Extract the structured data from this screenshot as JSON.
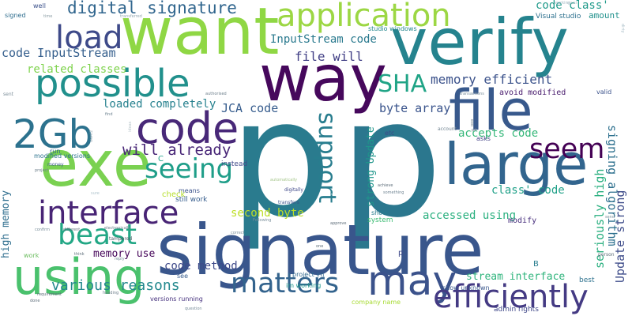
{
  "words": [
    {
      "text": "p",
      "color": "#2a7b8e"
    },
    {
      "text": "p",
      "color": "#2b778e"
    },
    {
      "text": "signature",
      "color": "#39568c"
    },
    {
      "text": "want",
      "color": "#8fd744"
    },
    {
      "text": "way",
      "color": "#46085c"
    },
    {
      "text": "verify",
      "color": "#25838e"
    },
    {
      "text": "file",
      "color": "#38598c"
    },
    {
      "text": "large",
      "color": "#32658e"
    },
    {
      "text": "possible",
      "color": "#21908c"
    },
    {
      "text": "code",
      "color": "#482878"
    },
    {
      "text": "exe",
      "color": "#7ad151"
    },
    {
      "text": "2Gb",
      "color": "#2c728e"
    },
    {
      "text": "application",
      "color": "#9cd744"
    },
    {
      "text": "using",
      "color": "#4ac16d"
    },
    {
      "text": "may",
      "color": "#3b528b"
    },
    {
      "text": "interface",
      "color": "#482475"
    },
    {
      "text": "efficiently",
      "color": "#443a83"
    },
    {
      "text": "matters",
      "color": "#33638d"
    },
    {
      "text": "seeing",
      "color": "#1f9e89"
    },
    {
      "text": "seem",
      "color": "#440154"
    },
    {
      "text": "load",
      "color": "#3e4a89"
    },
    {
      "text": "beast",
      "color": "#22a785"
    },
    {
      "text": "SHA",
      "color": "#20a486"
    },
    {
      "text": "support",
      "color": "#287d8e"
    },
    {
      "text": "digital signature",
      "color": "#31668e"
    },
    {
      "text": "code class'",
      "color": "#1f9a8a"
    },
    {
      "text": "will already",
      "color": "#482677"
    },
    {
      "text": "memory efficient",
      "color": "#3b528b"
    },
    {
      "text": "InputStream code",
      "color": "#29798e"
    },
    {
      "text": "code InputStream",
      "color": "#355f8d"
    },
    {
      "text": "file will",
      "color": "#424086"
    },
    {
      "text": "loaded completely",
      "color": "#26818e"
    },
    {
      "text": "JCA code",
      "color": "#365c8d"
    },
    {
      "text": "byte array",
      "color": "#3a548c"
    },
    {
      "text": "related classes",
      "color": "#7fd34e"
    },
    {
      "text": "accepts code",
      "color": "#35b779"
    },
    {
      "text": "class' code",
      "color": "#1fa088"
    },
    {
      "text": "signing algorithm",
      "color": "#2d708e"
    },
    {
      "text": "strong Update",
      "color": "#1f968b"
    },
    {
      "text": "Update strong",
      "color": "#3e4c8a"
    },
    {
      "text": "seriously high",
      "color": "#29af7f"
    },
    {
      "text": "second byte",
      "color": "#bddf26"
    },
    {
      "text": "accessed using",
      "color": "#2ab07f"
    },
    {
      "text": "various reasons",
      "color": "#23898e"
    },
    {
      "text": "code method",
      "color": "#3e4989"
    },
    {
      "text": "stream interface",
      "color": "#2fb47c"
    },
    {
      "text": "memory use",
      "color": "#450559"
    },
    {
      "text": "high memory",
      "color": "#2e6e8e"
    },
    {
      "text": "avoid modified",
      "color": "#481b6d"
    },
    {
      "text": "amount",
      "color": "#21918c"
    },
    {
      "text": "Visual studio",
      "color": "#2d708e"
    },
    {
      "text": "studio windows",
      "color": "#24868e"
    },
    {
      "text": "modify",
      "color": "#472f7d"
    },
    {
      "text": "project im",
      "color": "#31688e"
    },
    {
      "text": "im working",
      "color": "#1f968b"
    },
    {
      "text": "company name",
      "color": "#a8db34"
    },
    {
      "text": "admin rights",
      "color": "#3f4788"
    },
    {
      "text": "show unknown",
      "color": "#39568c"
    },
    {
      "text": "versions running",
      "color": "#46327e"
    },
    {
      "text": "still work",
      "color": "#365d8d"
    },
    {
      "text": "modified versions",
      "color": "#2c738e"
    },
    {
      "text": "means",
      "color": "#3b528b"
    },
    {
      "text": "check",
      "color": "#b5de2b"
    },
    {
      "text": "instead",
      "color": "#3f4889"
    },
    {
      "text": "asks",
      "color": "#424186"
    },
    {
      "text": "system",
      "color": "#3dbc74"
    },
    {
      "text": "show",
      "color": "#287c8e"
    },
    {
      "text": "see",
      "color": "#365c8d"
    },
    {
      "text": "valid",
      "color": "#3b528b"
    },
    {
      "text": "best",
      "color": "#2d718e"
    },
    {
      "text": "run",
      "color": "#32648e"
    },
    {
      "text": "etc",
      "color": "#3e4a89"
    },
    {
      "text": "money",
      "color": "#38588c"
    },
    {
      "text": "signed",
      "color": "#2e6d8e"
    },
    {
      "text": "well",
      "color": "#3b518b"
    },
    {
      "text": "time",
      "color": "#8a9ca4"
    },
    {
      "text": "transferred",
      "color": "#95a8b2"
    },
    {
      "text": "working",
      "color": "#a0b8c4"
    },
    {
      "text": "must",
      "color": "#b5c4c9"
    },
    {
      "text": "dirty",
      "color": "#a7bcc6"
    },
    {
      "text": "sent",
      "color": "#7d8f9a"
    },
    {
      "text": "authorised",
      "color": "#6c7e8a"
    },
    {
      "text": "transactions",
      "color": "#7a8f9b"
    },
    {
      "text": "account",
      "color": "#6f8290"
    },
    {
      "text": "ideas",
      "color": "#b9c6cc"
    },
    {
      "text": "find",
      "color": "#6f8492"
    },
    {
      "text": "want2",
      "color": "#a6b5bd"
    },
    {
      "text": "automatically",
      "color": "#a6c68c"
    },
    {
      "text": "digitally",
      "color": "#3f4889"
    },
    {
      "text": "transfers",
      "color": "#3b528b"
    },
    {
      "text": "something",
      "color": "#6f8492"
    },
    {
      "text": "achieve",
      "color": "#5e6e7a"
    },
    {
      "text": "Following",
      "color": "#7a8f9b"
    },
    {
      "text": "correct",
      "color": "#7a8f9b"
    },
    {
      "text": "approve",
      "color": "#5e6e7a"
    },
    {
      "text": "electronically",
      "color": "#6c7e8a"
    },
    {
      "text": "different",
      "color": "#5e6e7a"
    },
    {
      "text": "confirm",
      "color": "#7a8f9b"
    },
    {
      "text": "tampered",
      "color": "#4a5764"
    },
    {
      "text": "think",
      "color": "#5e6e7a"
    },
    {
      "text": "reply",
      "color": "#7a8f9b"
    },
    {
      "text": "work",
      "color": "#6cbd60"
    },
    {
      "text": "requirement",
      "color": "#5e6e7a"
    },
    {
      "text": "heading",
      "color": "#6c7e8a"
    },
    {
      "text": "done",
      "color": "#5e6e7a"
    },
    {
      "text": "question",
      "color": "#7a8f9b"
    },
    {
      "text": "one",
      "color": "#5e6e7a"
    },
    {
      "text": "send",
      "color": "#7a8f9b"
    },
    {
      "text": "person",
      "color": "#5e6e7a"
    },
    {
      "text": "project",
      "color": "#6c7e8a"
    },
    {
      "text": "sure",
      "color": "#b0c4ce"
    },
    {
      "text": "C",
      "color": "#1fa088"
    },
    {
      "text": "B",
      "color": "#287d8e"
    },
    {
      "text": "p",
      "color": "#3e4a89"
    },
    {
      "text": "pop",
      "color": "#6c7e8a"
    },
    {
      "text": "p2",
      "color": "#6c7e8a"
    }
  ]
}
